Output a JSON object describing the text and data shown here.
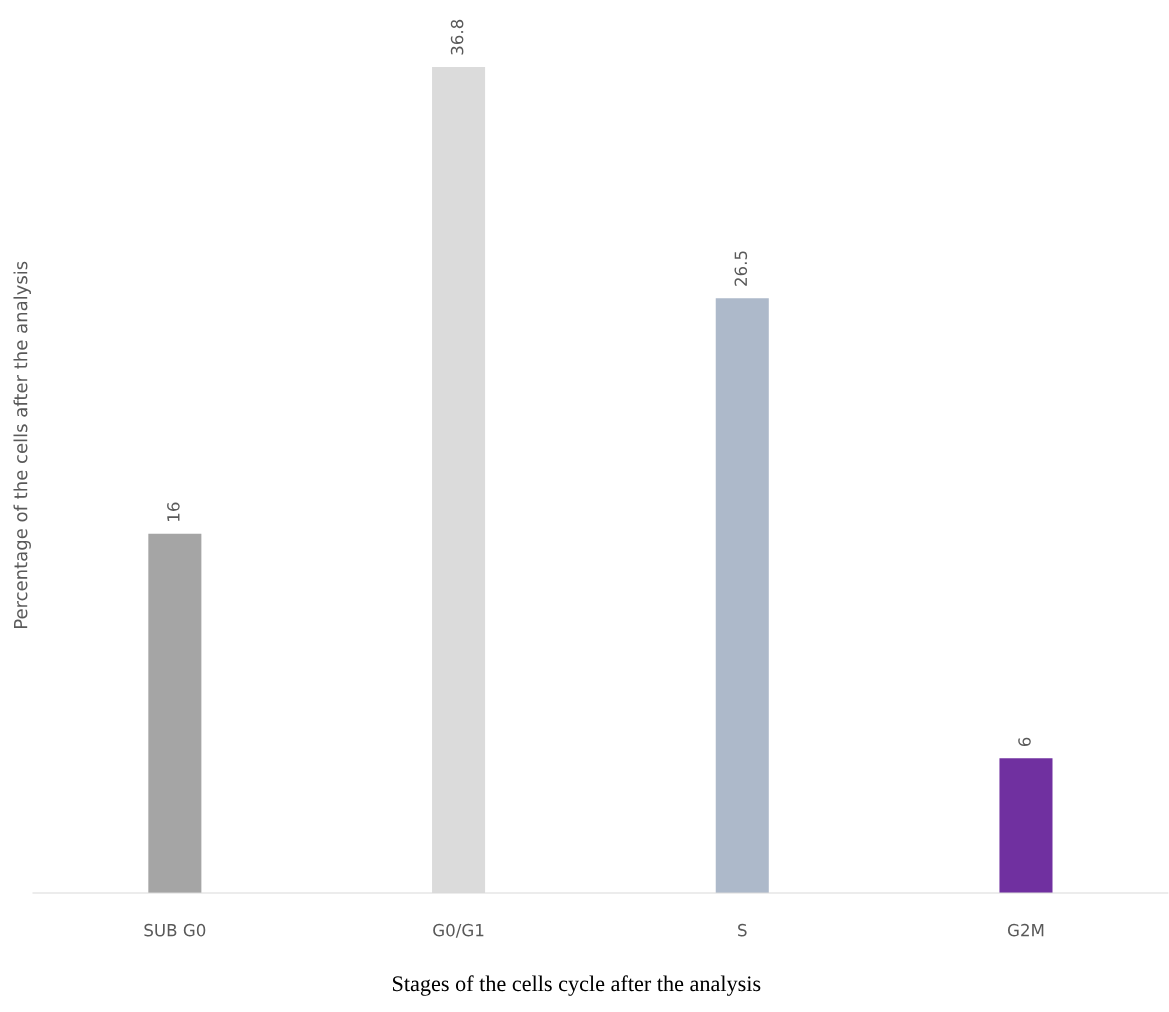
{
  "chart_data": {
    "type": "bar",
    "xlabel": "Stages of the cells cycle after the analysis",
    "ylabel": "Percentage of the cells after the analysis",
    "categories": [
      "SUB G0",
      "G0/G1",
      "S",
      "G2M"
    ],
    "values": [
      16,
      36.8,
      26.5,
      6
    ],
    "colors": [
      "#a5a5a5",
      "#dbdbdb",
      "#adb9ca",
      "#7030a0"
    ],
    "data_labels": true,
    "grid": false,
    "tick_labels": "x"
  }
}
